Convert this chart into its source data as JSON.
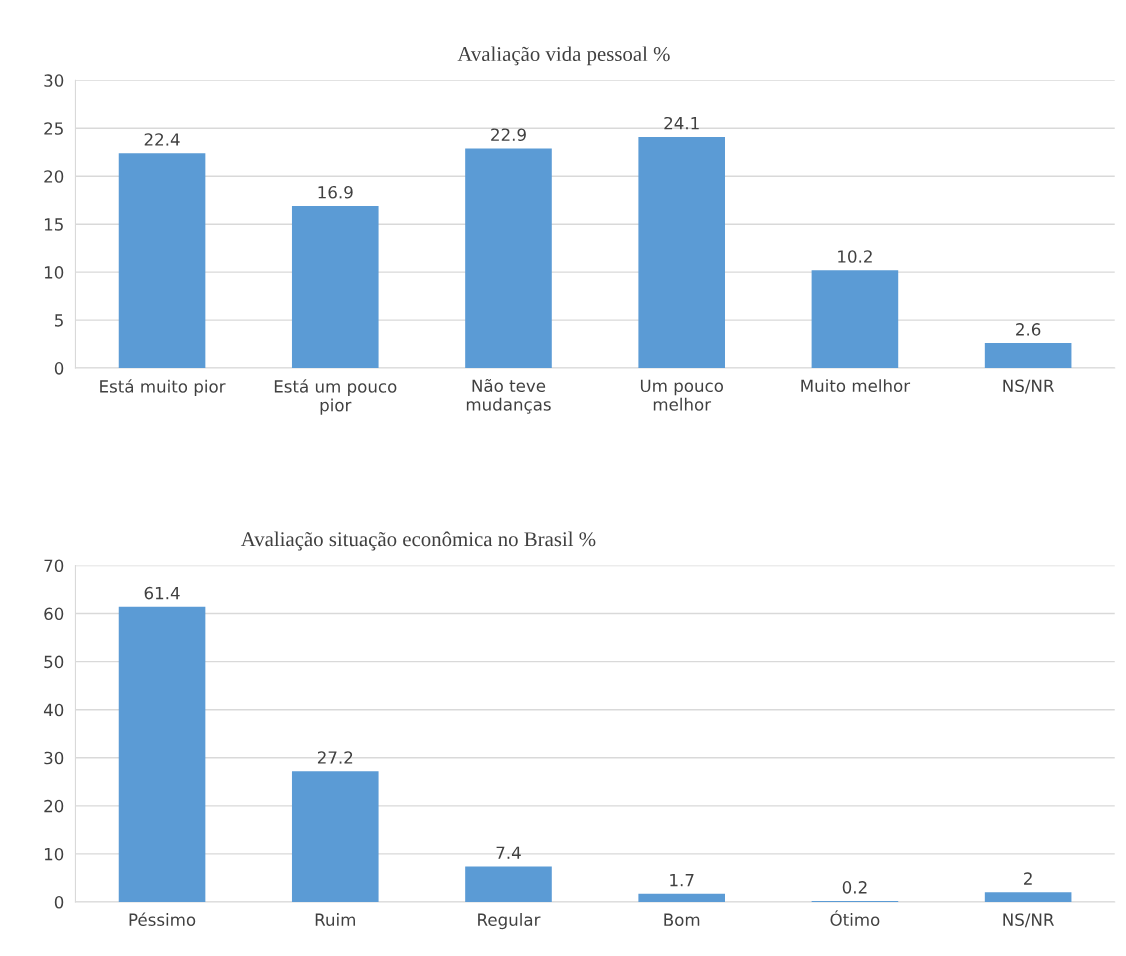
{
  "chart_data": [
    {
      "type": "bar",
      "title": "Avaliação vida pessoal %",
      "categories": [
        "Está muito pior",
        "Está um pouco\npior",
        "Não teve\nmudanças",
        "Um pouco\nmelhor",
        "Muito melhor",
        "NS/NR"
      ],
      "values": [
        22.4,
        16.9,
        22.9,
        24.1,
        10.2,
        2.6
      ],
      "color": "#5b9bd5",
      "ylim": [
        0,
        30
      ],
      "yticks": [
        0,
        5,
        10,
        15,
        20,
        25,
        30
      ],
      "grid": "y",
      "data_labels": true,
      "legend": false
    },
    {
      "type": "bar",
      "title": "Avaliação situação econômica no Brasil %",
      "categories": [
        "Péssimo",
        "Ruim",
        "Regular",
        "Bom",
        "Ótimo",
        "NS/NR"
      ],
      "values": [
        61.4,
        27.2,
        7.4,
        1.7,
        0.2,
        2
      ],
      "color": "#5b9bd5",
      "ylim": [
        0,
        70
      ],
      "yticks": [
        0,
        10,
        20,
        30,
        40,
        50,
        60,
        70
      ],
      "grid": "y",
      "data_labels": true,
      "legend": false
    }
  ]
}
